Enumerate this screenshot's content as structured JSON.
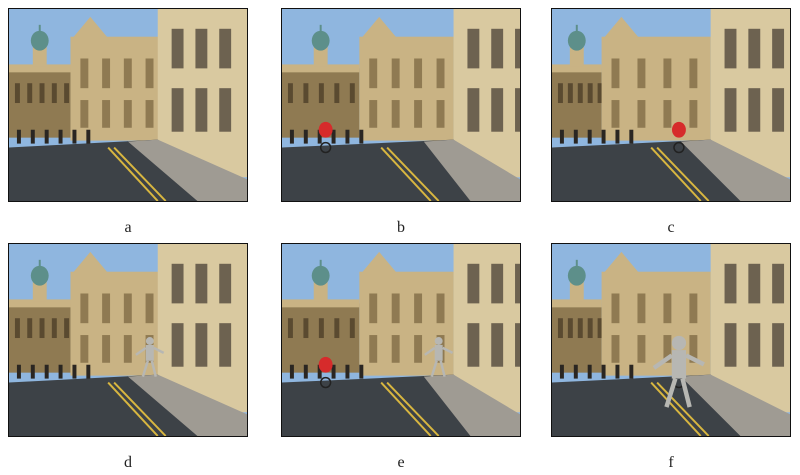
{
  "figure": {
    "panels": [
      {
        "label": "a",
        "variant": "wide",
        "cyclist": false,
        "robot": false
      },
      {
        "label": "b",
        "variant": "mid",
        "cyclist": true,
        "robot": false
      },
      {
        "label": "c",
        "variant": "far",
        "cyclist": true,
        "robot": false
      },
      {
        "label": "d",
        "variant": "wide",
        "cyclist": false,
        "robot": true
      },
      {
        "label": "e",
        "variant": "mid",
        "cyclist": true,
        "robot": true
      },
      {
        "label": "f",
        "variant": "far",
        "cyclist": true,
        "robot": true
      }
    ],
    "colors": {
      "sky": "#8fb6df",
      "stone": "#c9b384",
      "stone_dark": "#8f7a52",
      "road": "#3d4247",
      "pavement": "#9f9b93",
      "yellow_line": "#d8b640",
      "cyclist_red": "#d62b2b",
      "dome": "#5d8f8a",
      "robot_metal": "#b7b7b3"
    }
  }
}
